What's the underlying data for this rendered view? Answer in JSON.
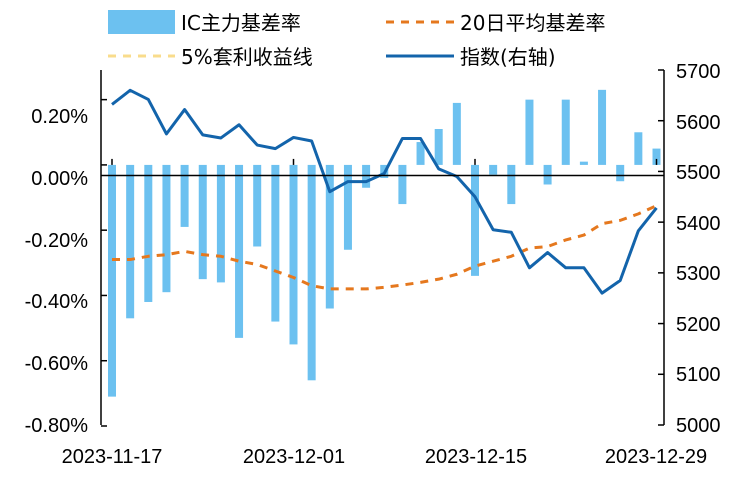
{
  "chart_data": {
    "type": "bar",
    "left_axis": {
      "min": -0.8,
      "max": 0.3,
      "ticks": [
        "0.20%",
        "0.00%",
        "-0.20%",
        "-0.40%",
        "-0.60%",
        "-0.80%"
      ],
      "tick_values": [
        0.2,
        0.0,
        -0.2,
        -0.4,
        -0.6,
        -0.8
      ]
    },
    "right_axis": {
      "min": 5000,
      "max": 5700,
      "ticks": [
        "5700",
        "5600",
        "5500",
        "5400",
        "5300",
        "5200",
        "5100",
        "5000"
      ],
      "tick_values": [
        5700,
        5600,
        5500,
        5400,
        5300,
        5200,
        5100,
        5000
      ]
    },
    "x_tick_labels": [
      "2023-11-17",
      "2023-12-01",
      "2023-12-15",
      "2023-12-29"
    ],
    "x_tick_positions": [
      0,
      10,
      20,
      30
    ],
    "legend": [
      "IC主力基差率",
      "20日平均基差率",
      "5%套利收益线",
      "指数(右轴)"
    ],
    "series": [
      {
        "name": "IC主力基差率",
        "kind": "bar",
        "axis": "left",
        "color": "#6cc1f0",
        "values": [
          -0.71,
          -0.47,
          -0.42,
          -0.39,
          -0.19,
          -0.35,
          -0.36,
          -0.53,
          -0.25,
          -0.48,
          -0.55,
          -0.66,
          -0.44,
          -0.26,
          -0.07,
          -0.04,
          -0.12,
          0.07,
          0.11,
          0.19,
          -0.34,
          -0.03,
          -0.12,
          0.2,
          -0.06,
          0.2,
          0.01,
          0.23,
          -0.05,
          0.1,
          0.05
        ]
      },
      {
        "name": "20日平均基差率",
        "kind": "line",
        "axis": "left",
        "color": "#e5781e",
        "dash": "dashed",
        "values": [
          -0.29,
          -0.29,
          -0.28,
          -0.275,
          -0.265,
          -0.275,
          -0.28,
          -0.295,
          -0.305,
          -0.325,
          -0.345,
          -0.37,
          -0.38,
          -0.38,
          -0.38,
          -0.375,
          -0.368,
          -0.36,
          -0.35,
          -0.335,
          -0.31,
          -0.295,
          -0.28,
          -0.255,
          -0.25,
          -0.23,
          -0.215,
          -0.18,
          -0.17,
          -0.15,
          -0.125
        ]
      },
      {
        "name": "5%套利收益线",
        "kind": "line",
        "axis": "left",
        "color": "#f9dc8c",
        "dash": "dashed",
        "values": []
      },
      {
        "name": "指数(右轴)",
        "kind": "line",
        "axis": "right",
        "color": "#1364ab",
        "values": [
          5632,
          5660,
          5642,
          5574,
          5622,
          5572,
          5566,
          5592,
          5552,
          5545,
          5567,
          5560,
          5460,
          5480,
          5480,
          5496,
          5565,
          5565,
          5505,
          5490,
          5450,
          5385,
          5380,
          5310,
          5340,
          5310,
          5310,
          5260,
          5285,
          5383,
          5428
        ]
      }
    ]
  }
}
